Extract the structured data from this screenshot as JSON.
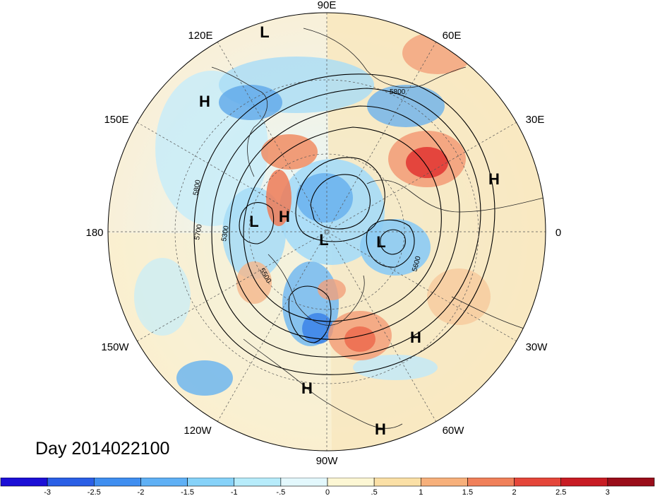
{
  "title": "Day 2014022100",
  "longitude_labels": [
    {
      "text": "90E",
      "angle": 90
    },
    {
      "text": "60E",
      "angle": 60
    },
    {
      "text": "30E",
      "angle": 30
    },
    {
      "text": "0",
      "angle": 0
    },
    {
      "text": "30W",
      "angle": -30
    },
    {
      "text": "60W",
      "angle": -60
    },
    {
      "text": "90W",
      "angle": -90
    },
    {
      "text": "120W",
      "angle": -120
    },
    {
      "text": "150W",
      "angle": -150
    },
    {
      "text": "180",
      "angle": 180
    },
    {
      "text": "150E",
      "angle": 150
    },
    {
      "text": "120E",
      "angle": 120
    }
  ],
  "pressure_centers": [
    {
      "type": "L",
      "lon_pos": [
        375,
        45
      ]
    },
    {
      "type": "H",
      "lon_pos": [
        290,
        143
      ]
    },
    {
      "type": "H",
      "lon_pos": [
        700,
        253
      ]
    },
    {
      "type": "L",
      "lon_pos": [
        360,
        313
      ]
    },
    {
      "type": "H",
      "lon_pos": [
        403,
        306
      ]
    },
    {
      "type": "L",
      "lon_pos": [
        459,
        339
      ]
    },
    {
      "type": "L",
      "lon_pos": [
        540,
        342
      ]
    },
    {
      "type": "H",
      "lon_pos": [
        589,
        477
      ]
    },
    {
      "type": "H",
      "lon_pos": [
        435,
        549
      ]
    },
    {
      "type": "H",
      "lon_pos": [
        539,
        607
      ]
    }
  ],
  "contour_labels": [
    "5800",
    "5800",
    "5700",
    "5300",
    "5500",
    "5600"
  ],
  "colorbar": {
    "ticks": [
      "-3",
      "-2.5",
      "-2",
      "-1.5",
      "-1",
      "-.5",
      "0",
      ".5",
      "1",
      "1.5",
      "2",
      "2.5",
      "3"
    ],
    "colors": [
      "#1c0fd6",
      "#2a5fe6",
      "#3f8ef0",
      "#5fb0f5",
      "#86d2f9",
      "#b7ecfb",
      "#e3f8fd",
      "#fdf7d4",
      "#fbe0a6",
      "#f7b07b",
      "#f0805a",
      "#e5463a",
      "#c81c24",
      "#9a0d1a"
    ]
  }
}
